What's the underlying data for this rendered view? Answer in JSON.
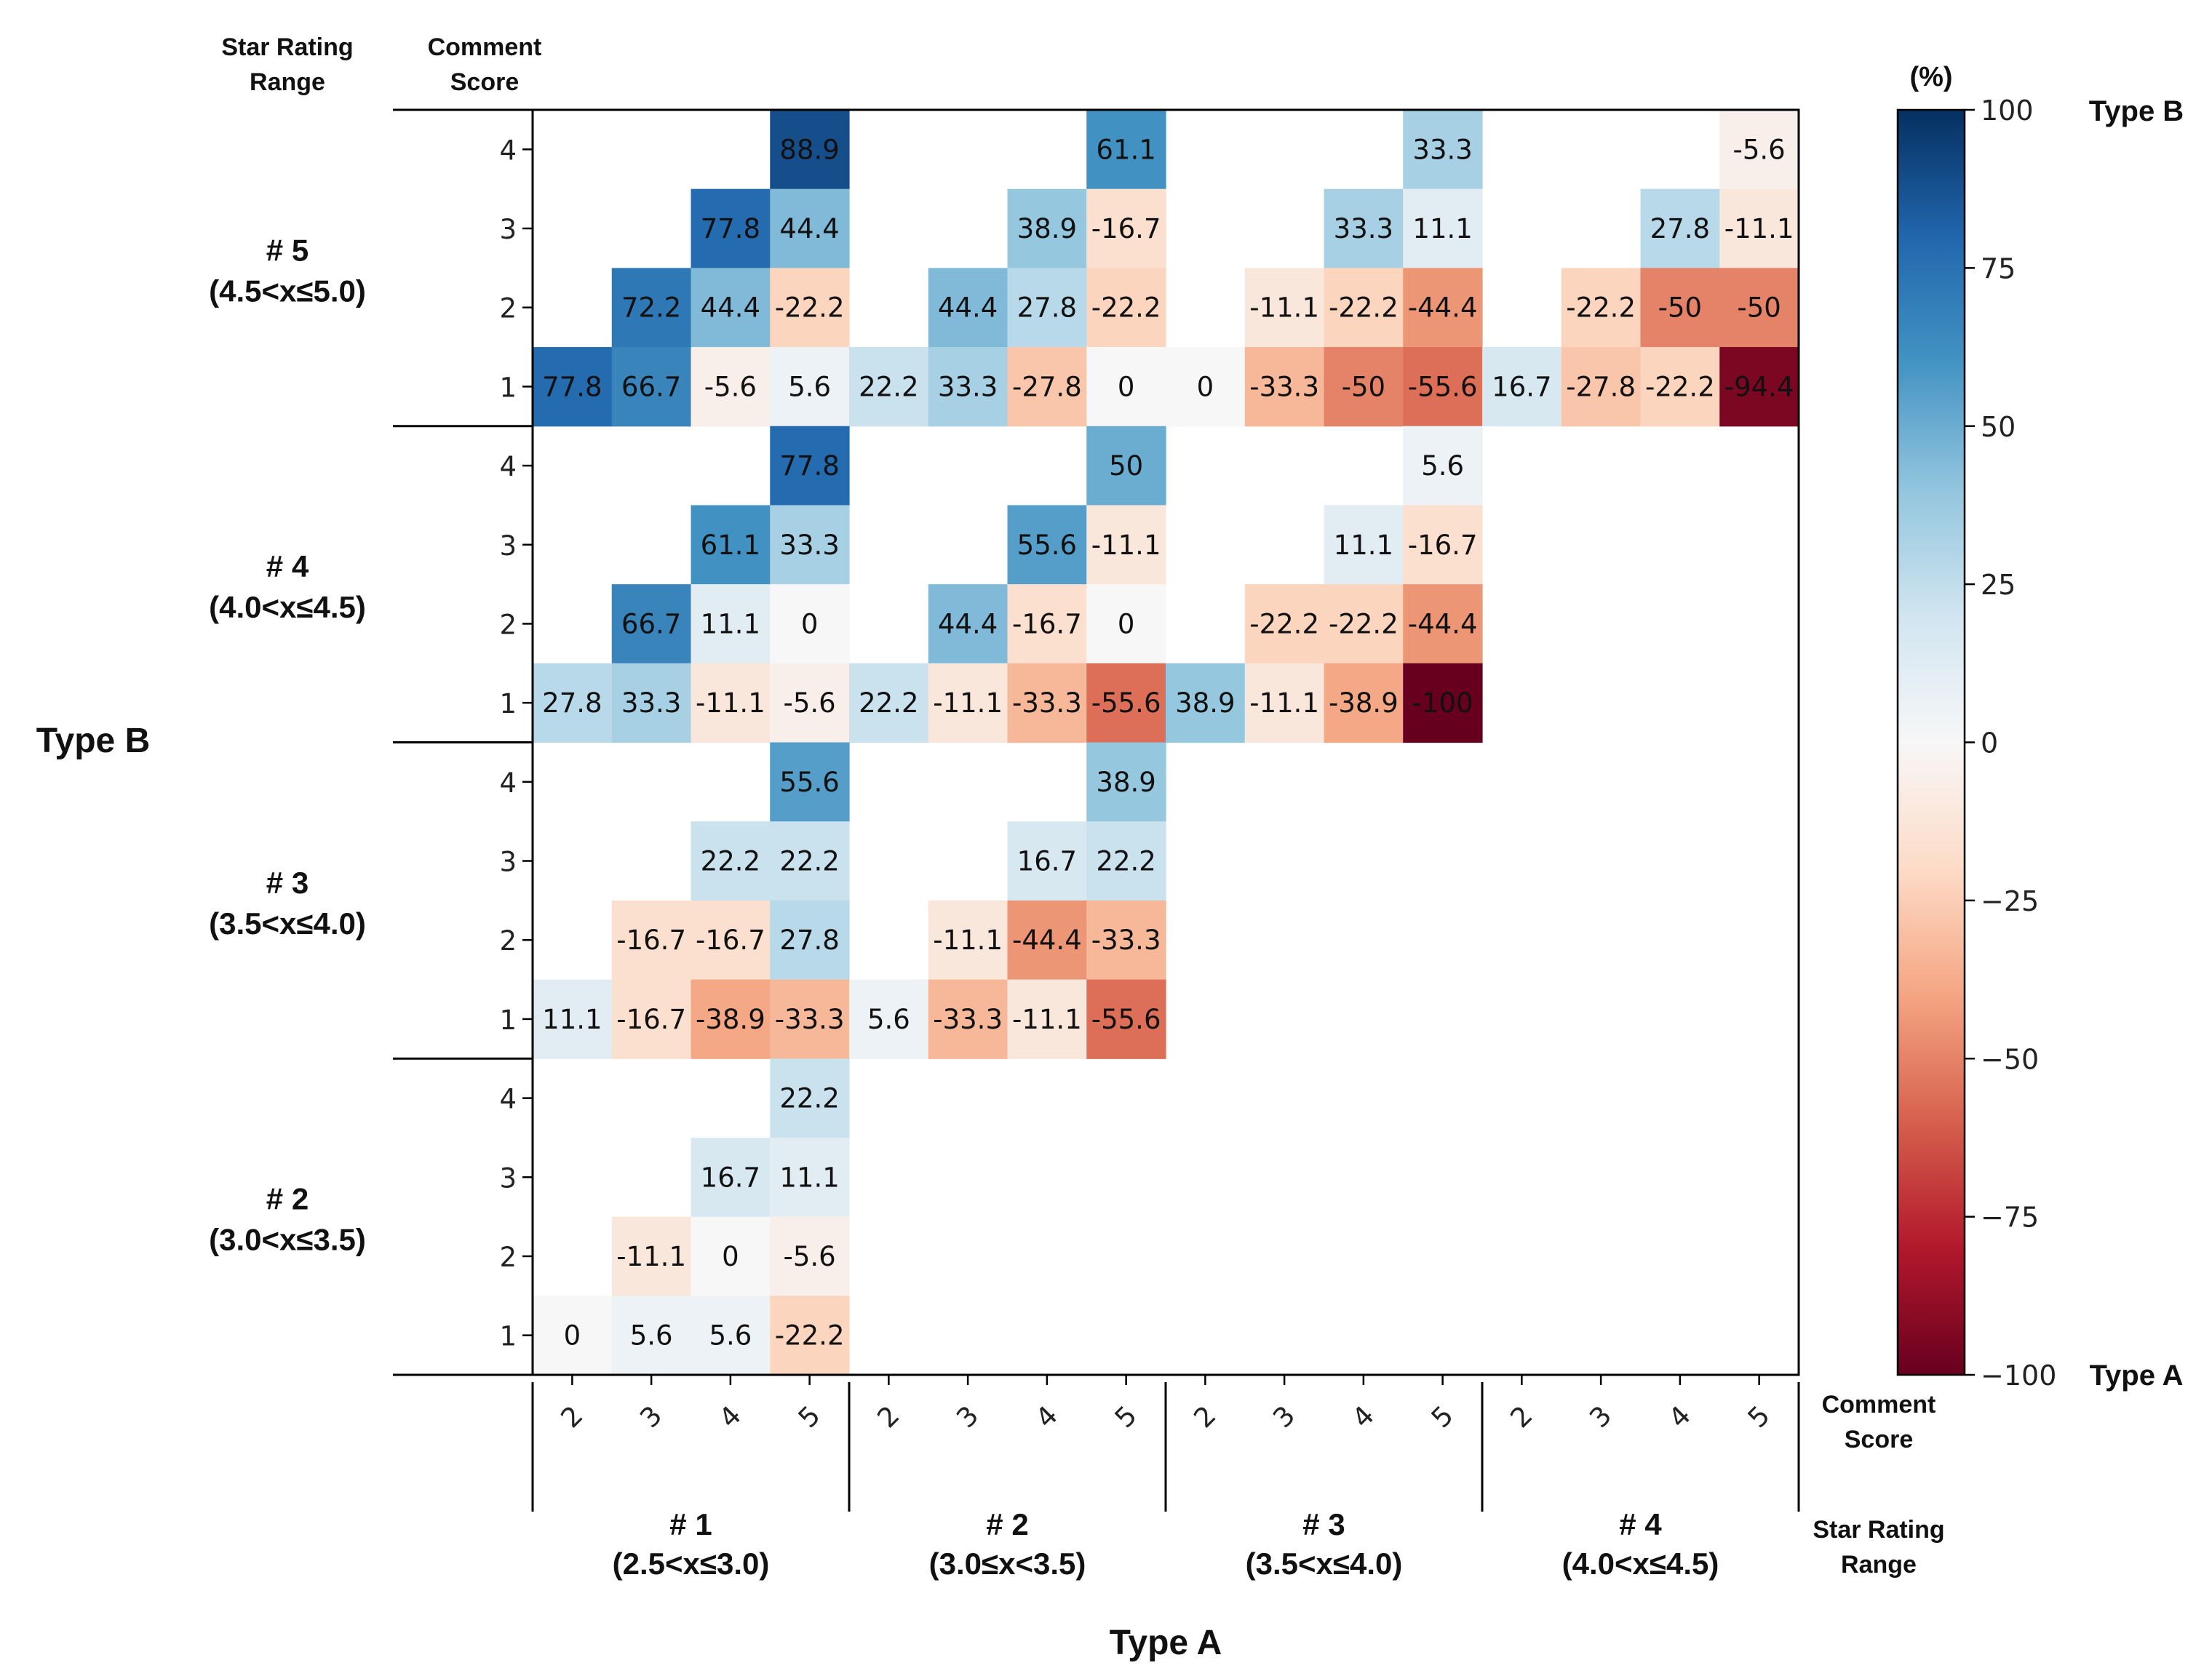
{
  "chart_data": {
    "type": "heatmap",
    "x_axis_title": "Type A",
    "y_axis_title": "Type B",
    "row_header": {
      "star_rating": "Star Rating Range",
      "comment_score": "Comment Score"
    },
    "col_footer": {
      "comment_score": "Comment Score",
      "star_rating": "Star Rating Range"
    },
    "comment_scores_x": [
      "2",
      "3",
      "4",
      "5"
    ],
    "comment_scores_y": [
      "4",
      "3",
      "2",
      "1"
    ],
    "x_groups": [
      {
        "name": "# 1",
        "range": "(2.5<x≤3.0)"
      },
      {
        "name": "# 2",
        "range": "(3.0≤x<3.5)"
      },
      {
        "name": "# 3",
        "range": "(3.5<x≤4.0)"
      },
      {
        "name": "# 4",
        "range": "(4.0<x≤4.5)"
      }
    ],
    "y_groups": [
      {
        "name": "# 5",
        "range": "(4.5<x≤5.0)"
      },
      {
        "name": "# 4",
        "range": "(4.0<x≤4.5)"
      },
      {
        "name": "# 3",
        "range": "(3.5<x≤4.0)"
      },
      {
        "name": "# 2",
        "range": "(3.0<x≤3.5)"
      }
    ],
    "colorbar": {
      "unit_label": "(%)",
      "min": -100,
      "max": 100,
      "ticks": [
        100,
        75,
        50,
        25,
        0,
        -25,
        -50,
        -75,
        -100
      ],
      "tick_labels": [
        "100",
        "75",
        "50",
        "25",
        "0",
        "−25",
        "−50",
        "−75",
        "−100"
      ],
      "top_label": "Type B",
      "bottom_label": "Type A",
      "colormap": "RdBu"
    },
    "values": [
      [
        null,
        null,
        null,
        88.9,
        null,
        null,
        null,
        61.1,
        null,
        null,
        null,
        33.3,
        null,
        null,
        null,
        -5.6
      ],
      [
        null,
        null,
        77.8,
        44.4,
        null,
        null,
        38.9,
        -16.7,
        null,
        null,
        33.3,
        11.1,
        null,
        null,
        27.8,
        -11.1
      ],
      [
        null,
        72.2,
        44.4,
        -22.2,
        null,
        44.4,
        27.8,
        -22.2,
        null,
        -11.1,
        -22.2,
        -44.4,
        null,
        -22.2,
        -50.0,
        -50.0
      ],
      [
        77.8,
        66.7,
        -5.6,
        5.6,
        22.2,
        33.3,
        -27.8,
        0.0,
        0.0,
        -33.3,
        -50.0,
        -55.6,
        16.7,
        -27.8,
        -22.2,
        -94.4
      ],
      [
        null,
        null,
        null,
        77.8,
        null,
        null,
        null,
        50.0,
        null,
        null,
        null,
        5.6,
        null,
        null,
        null,
        null
      ],
      [
        null,
        null,
        61.1,
        33.3,
        null,
        null,
        55.6,
        -11.1,
        null,
        null,
        11.1,
        -16.7,
        null,
        null,
        null,
        null
      ],
      [
        null,
        66.7,
        11.1,
        0.0,
        null,
        44.4,
        -16.7,
        0.0,
        null,
        -22.2,
        -22.2,
        -44.4,
        null,
        null,
        null,
        null
      ],
      [
        27.8,
        33.3,
        -11.1,
        -5.6,
        22.2,
        -11.1,
        -33.3,
        -55.6,
        38.9,
        -11.1,
        -38.9,
        -100.0,
        null,
        null,
        null,
        null
      ],
      [
        null,
        null,
        null,
        55.6,
        null,
        null,
        null,
        38.9,
        null,
        null,
        null,
        null,
        null,
        null,
        null,
        null
      ],
      [
        null,
        null,
        22.2,
        22.2,
        null,
        null,
        16.7,
        22.2,
        null,
        null,
        null,
        null,
        null,
        null,
        null,
        null
      ],
      [
        null,
        -16.7,
        -16.7,
        27.8,
        null,
        -11.1,
        -44.4,
        -33.3,
        null,
        null,
        null,
        null,
        null,
        null,
        null,
        null
      ],
      [
        11.1,
        -16.7,
        -38.9,
        -33.3,
        5.6,
        -33.3,
        -11.1,
        -55.6,
        null,
        null,
        null,
        null,
        null,
        null,
        null,
        null
      ],
      [
        null,
        null,
        null,
        22.2,
        null,
        null,
        null,
        null,
        null,
        null,
        null,
        null,
        null,
        null,
        null,
        null
      ],
      [
        null,
        null,
        16.7,
        11.1,
        null,
        null,
        null,
        null,
        null,
        null,
        null,
        null,
        null,
        null,
        null,
        null
      ],
      [
        null,
        -11.1,
        0.0,
        -5.6,
        null,
        null,
        null,
        null,
        null,
        null,
        null,
        null,
        null,
        null,
        null,
        null
      ],
      [
        0.0,
        5.6,
        5.6,
        -22.2,
        null,
        null,
        null,
        null,
        null,
        null,
        null,
        null,
        null,
        null,
        null,
        null
      ]
    ]
  }
}
